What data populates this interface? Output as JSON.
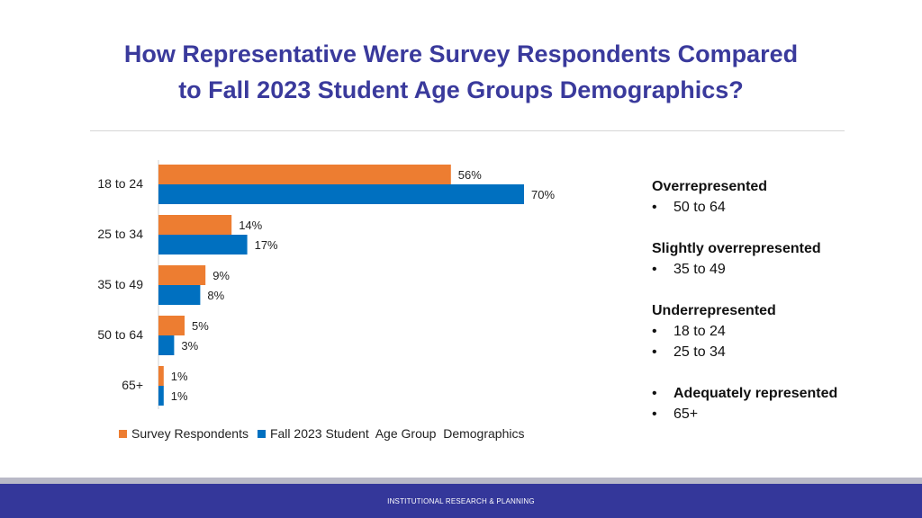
{
  "title": {
    "line1": "How Representative Were Survey Respondents Compared",
    "line2": "to Fall 2023 Student Age Groups Demographics?"
  },
  "chart_data": {
    "type": "bar",
    "orientation": "horizontal",
    "categories": [
      "18 to 24",
      "25 to 34",
      "35 to 49",
      "50 to 64",
      "65+"
    ],
    "series": [
      {
        "name": "Survey Respondents",
        "color": "#ed7d31",
        "values": [
          56,
          14,
          9,
          5,
          1
        ],
        "labels": [
          "56%",
          "14%",
          "9%",
          "5%",
          "1%"
        ]
      },
      {
        "name": "Fall 2023 Student  Age Group  Demographics",
        "color": "#0070c0",
        "values": [
          70,
          17,
          8,
          3,
          1
        ],
        "labels": [
          "70%",
          "17%",
          "8%",
          "3%",
          "1%"
        ]
      }
    ],
    "xlim": [
      0,
      80
    ],
    "legend_position": "bottom",
    "grid": false
  },
  "legend": {
    "survey": "Survey Respondents",
    "fall": "Fall 2023 Student  Age Group  Demographics"
  },
  "summary": {
    "over_head": "Overrepresented",
    "over_items": [
      "50 to 64"
    ],
    "slightly_head": "Slightly overrepresented",
    "slightly_items": [
      "35 to 49"
    ],
    "under_head": "Underrepresented",
    "under_items": [
      "18 to 24",
      "25 to 34"
    ],
    "adequate_head": "Adequately represented",
    "adequate_items": [
      "65+"
    ],
    "bullet": "•"
  },
  "footer": {
    "text": "INSTITUTIONAL RESEARCH & PLANNING"
  }
}
